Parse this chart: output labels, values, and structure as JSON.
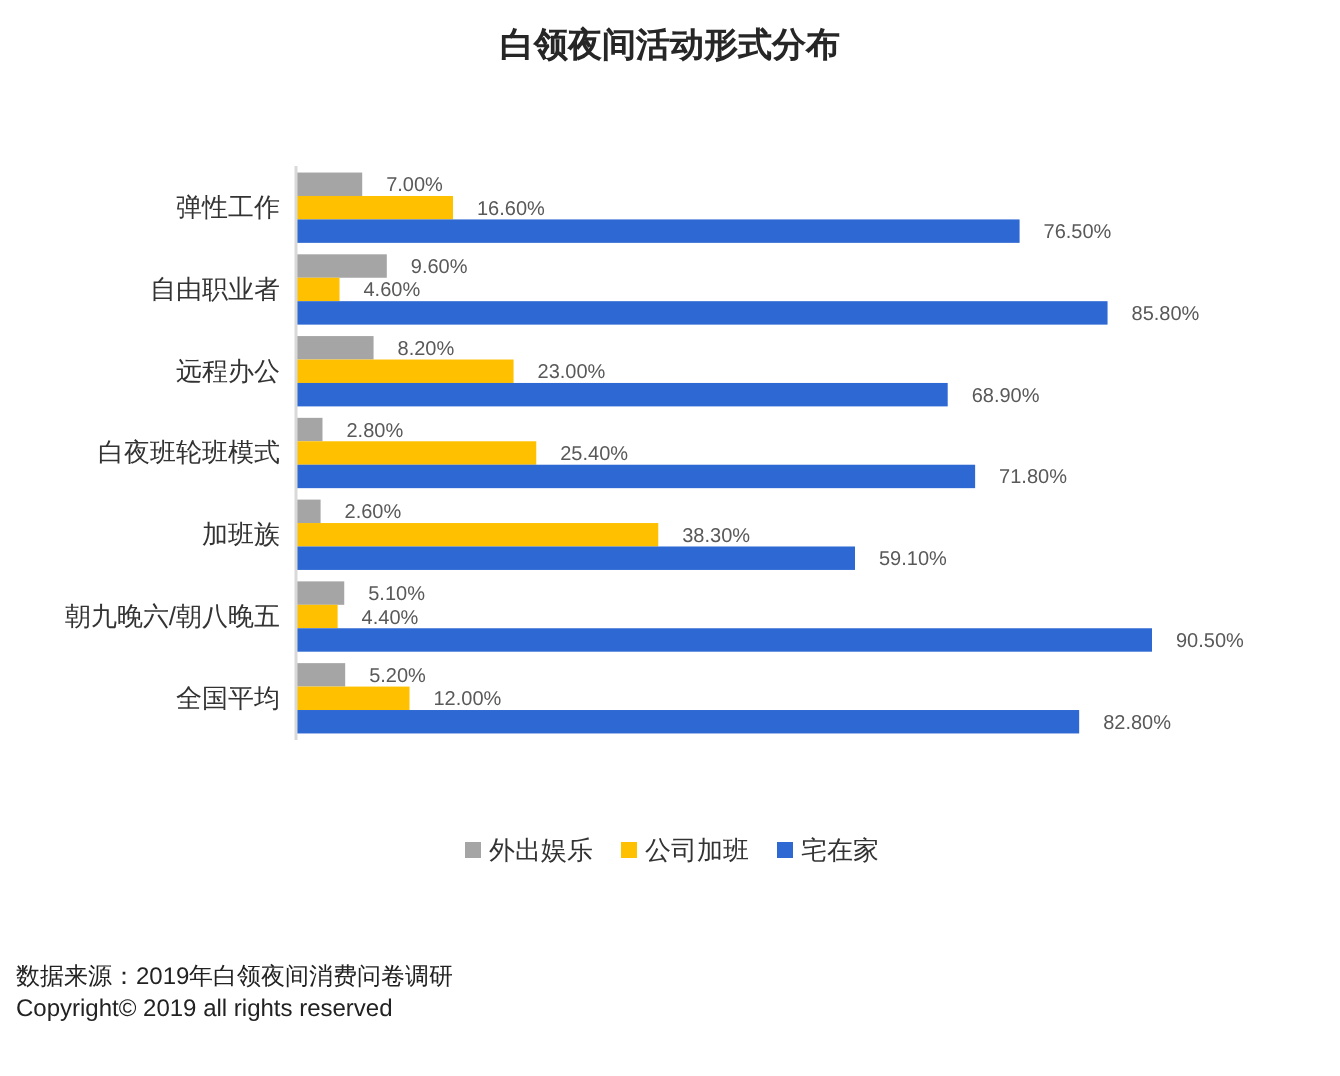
{
  "chart_data": {
    "type": "bar",
    "orientation": "horizontal",
    "title": "白领夜间活动形式分布",
    "categories": [
      "弹性工作",
      "自由职业者",
      "远程办公",
      "白夜班轮班模式",
      "加班族",
      "朝九晚六/朝八晚五",
      "全国平均"
    ],
    "series": [
      {
        "name": "外出娱乐",
        "color": "#a5a5a5",
        "values": [
          7.0,
          9.6,
          8.2,
          2.8,
          2.6,
          5.1,
          5.2
        ],
        "value_labels": [
          "7.00%",
          "9.60%",
          "8.20%",
          "2.80%",
          "2.60%",
          "5.10%",
          "5.20%"
        ]
      },
      {
        "name": "公司加班",
        "color": "#ffc000",
        "values": [
          16.6,
          4.6,
          23.0,
          25.4,
          38.3,
          4.4,
          12.0
        ],
        "value_labels": [
          "16.60%",
          "4.60%",
          "23.00%",
          "25.40%",
          "38.30%",
          "4.40%",
          "12.00%"
        ]
      },
      {
        "name": "宅在家",
        "color": "#2e68d2",
        "values": [
          76.5,
          85.8,
          68.9,
          71.8,
          59.1,
          90.5,
          82.8
        ],
        "value_labels": [
          "76.50%",
          "85.80%",
          "68.90%",
          "71.80%",
          "59.10%",
          "90.50%",
          "82.80%"
        ]
      }
    ],
    "tick_labels": "y",
    "legend": "bottom",
    "annotations": [
      "数据来源：2019年白领夜间消费问卷调研",
      "Copyright© 2019 all rights reserved"
    ]
  }
}
